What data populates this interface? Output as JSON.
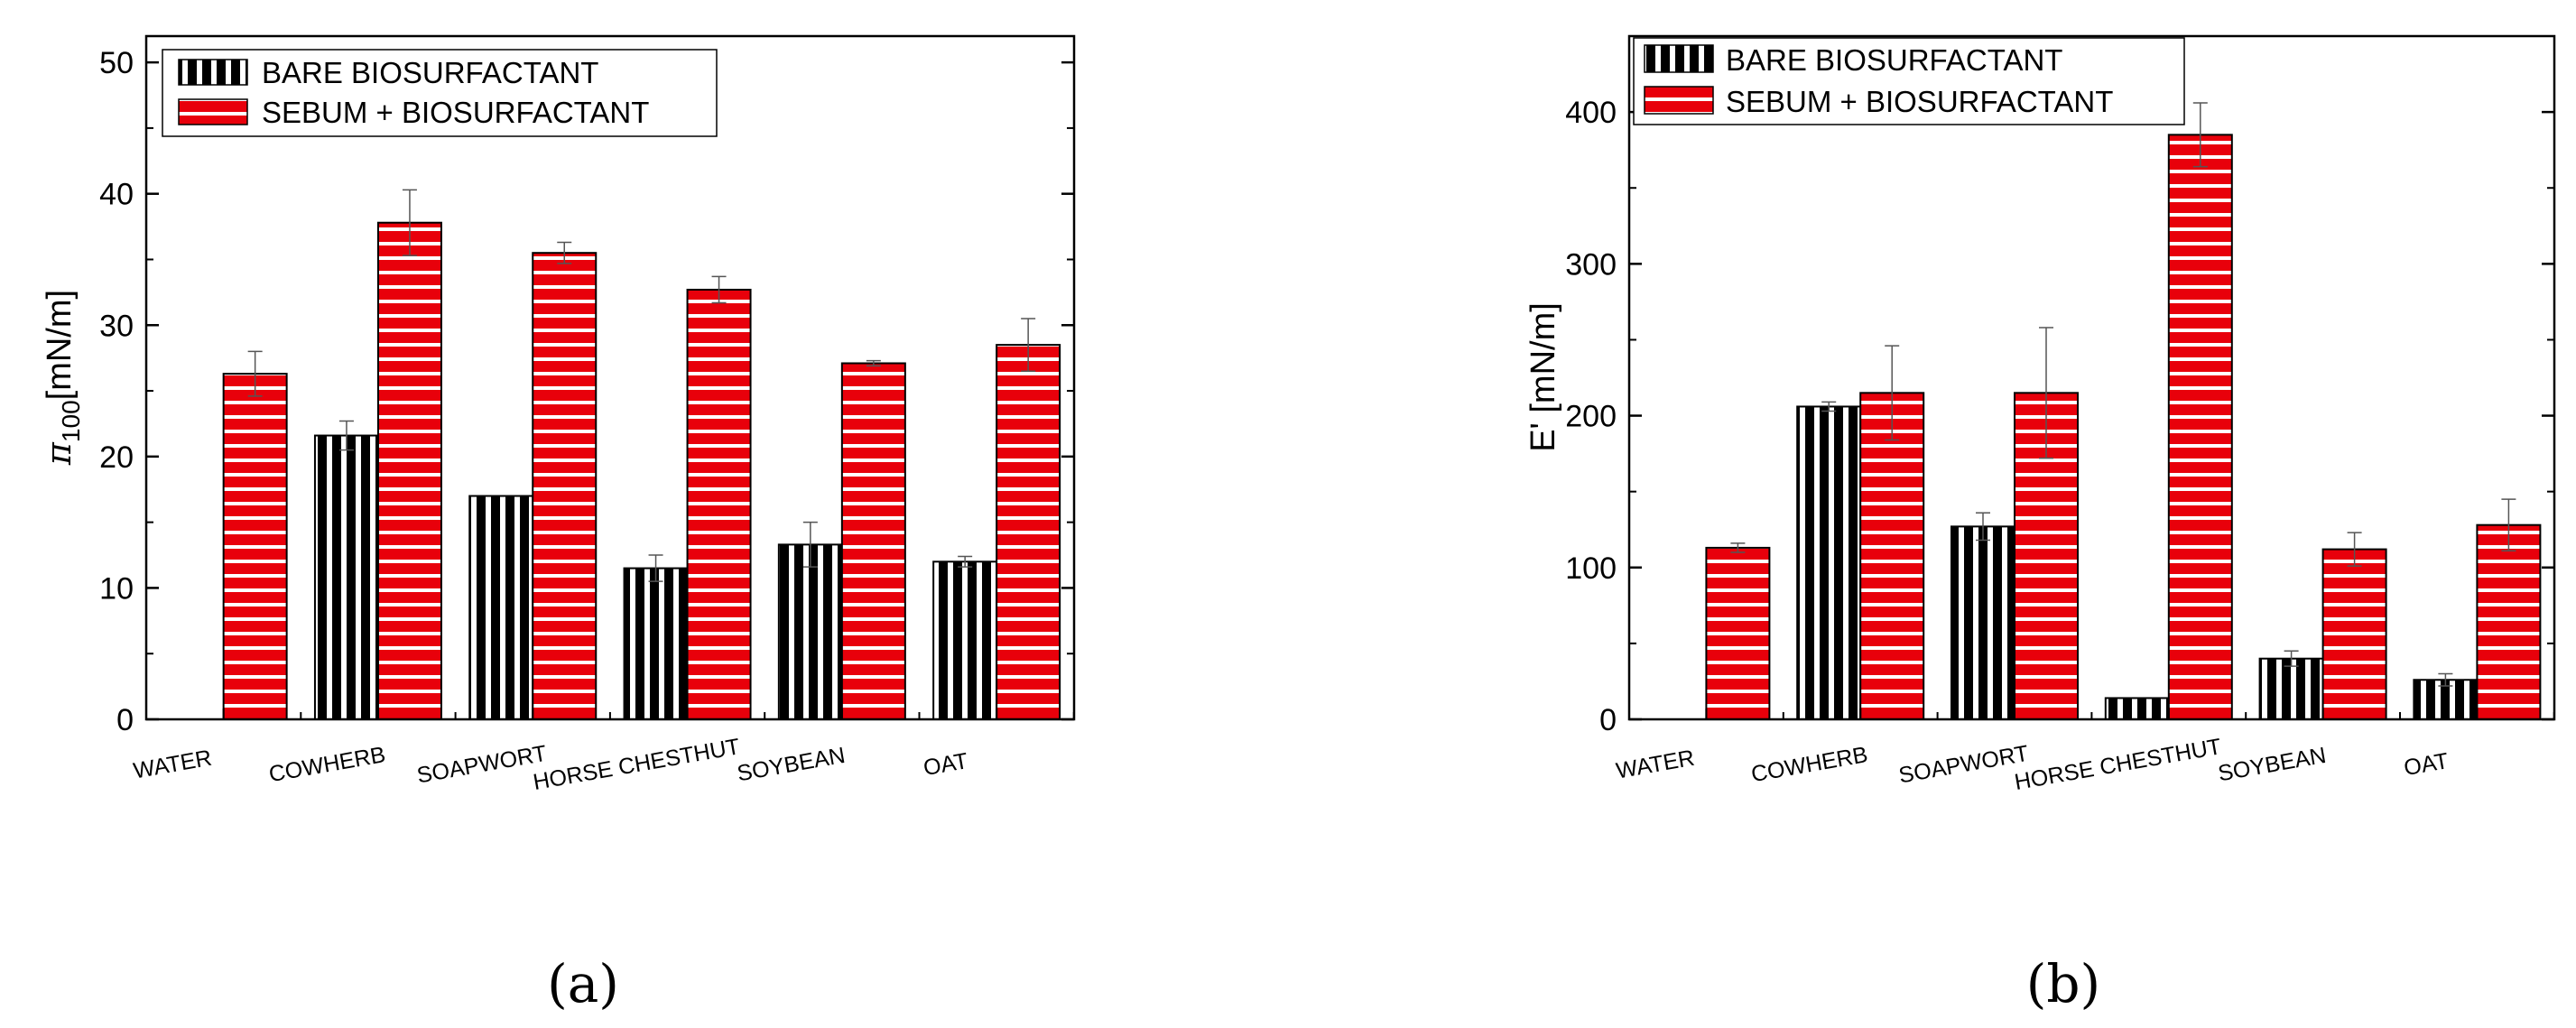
{
  "colors": {
    "bare": "#000000",
    "sebum": "#e8000b",
    "stripe": "#ffffff"
  },
  "chart_data": [
    {
      "type": "bar",
      "panel_label": "(a)",
      "ylabel": "π100[mN/m]",
      "ylabel_main": "π",
      "ylabel_sub": "100",
      "ylabel_unit": "[mN/m]",
      "ylim": [
        0,
        52
      ],
      "yticks": [
        0,
        10,
        20,
        30,
        40,
        50
      ],
      "categories": [
        "WATER",
        "COWHERB",
        "SOAPWORT",
        "HORSE CHESTHUT",
        "SOYBEAN",
        "OAT"
      ],
      "legend_position": "top-left",
      "series": [
        {
          "name": "BARE BIOSURFACTANT",
          "values": [
            null,
            21.6,
            17.0,
            11.5,
            13.3,
            12.0
          ],
          "errors": [
            null,
            1.1,
            0,
            1.0,
            1.7,
            0.4
          ]
        },
        {
          "name": "SEBUM + BIOSURFACTANT",
          "values": [
            26.3,
            37.8,
            35.5,
            32.7,
            27.1,
            28.5
          ],
          "errors": [
            1.7,
            2.5,
            0.8,
            1.0,
            0.2,
            2.0
          ]
        }
      ]
    },
    {
      "type": "bar",
      "panel_label": "(b)",
      "ylabel": "E' [mN/m]",
      "ylim": [
        0,
        450
      ],
      "yticks": [
        0,
        100,
        200,
        300,
        400
      ],
      "categories": [
        "WATER",
        "COWHERB",
        "SOAPWORT",
        "HORSE CHESTHUT",
        "SOYBEAN",
        "OAT"
      ],
      "legend_position": "top-left",
      "series": [
        {
          "name": "BARE BIOSURFACTANT",
          "values": [
            null,
            206,
            127,
            14,
            40,
            26
          ],
          "errors": [
            null,
            3,
            9,
            0,
            5,
            4
          ]
        },
        {
          "name": "SEBUM + BIOSURFACTANT",
          "values": [
            113,
            215,
            215,
            385,
            112,
            128
          ],
          "errors": [
            3,
            31,
            43,
            21,
            11,
            17
          ]
        }
      ]
    }
  ]
}
